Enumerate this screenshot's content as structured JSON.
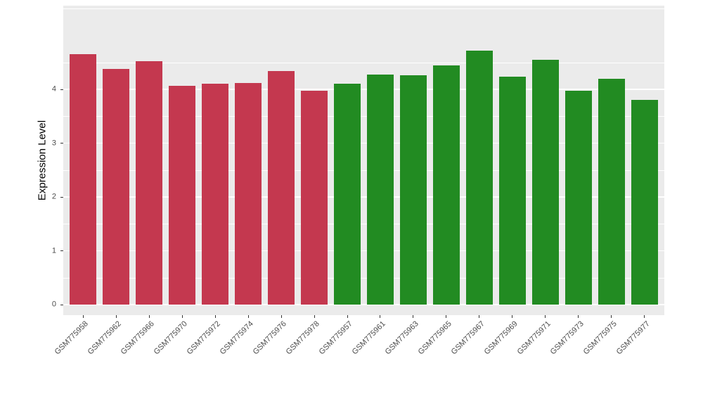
{
  "chart_data": {
    "type": "bar",
    "title": "",
    "xlabel": "",
    "ylabel": "Expression Level",
    "categories": [
      "GSM775958",
      "GSM775962",
      "GSM775966",
      "GSM775970",
      "GSM775972",
      "GSM775974",
      "GSM775976",
      "GSM775978",
      "GSM775957",
      "GSM775961",
      "GSM775963",
      "GSM775965",
      "GSM775967",
      "GSM775969",
      "GSM775971",
      "GSM775973",
      "GSM775975",
      "GSM775977"
    ],
    "values": [
      4.65,
      4.38,
      4.52,
      4.07,
      4.1,
      4.12,
      4.34,
      3.98,
      4.11,
      4.28,
      4.26,
      4.44,
      4.72,
      4.24,
      4.55,
      3.98,
      4.19,
      3.81
    ],
    "bar_groups": [
      "red",
      "red",
      "red",
      "red",
      "red",
      "red",
      "red",
      "red",
      "green",
      "green",
      "green",
      "green",
      "green",
      "green",
      "green",
      "green",
      "green",
      "green"
    ],
    "colors": {
      "red": "#C4384F",
      "green": "#228B22"
    },
    "yticks": [
      0,
      1,
      2,
      3,
      4
    ],
    "ylim": [
      0,
      5.5
    ],
    "minor_grid": true,
    "grid_on": true,
    "legend": "none",
    "panel_background": "#EBEBEB",
    "grid_color": "#FFFFFF"
  }
}
